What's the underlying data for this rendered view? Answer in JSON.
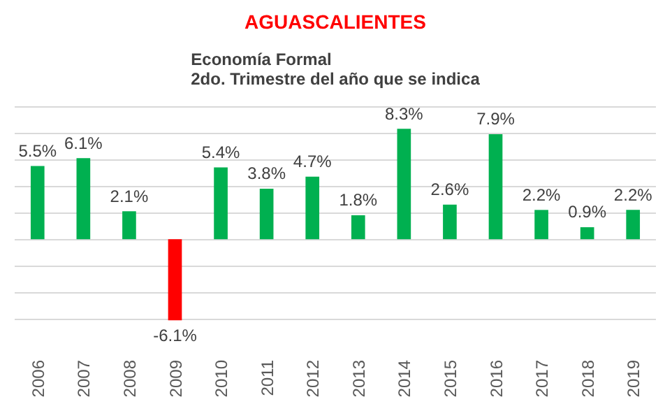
{
  "chart_data": {
    "type": "bar",
    "title": "AGUASCALIENTES",
    "subtitle": "Economía Formal\n2do. Trimestre del año que se indica",
    "categories": [
      "2006",
      "2007",
      "2008",
      "2009",
      "2010",
      "2011",
      "2012",
      "2013",
      "2014",
      "2015",
      "2016",
      "2017",
      "2018",
      "2019"
    ],
    "values": [
      5.5,
      6.1,
      2.1,
      -6.1,
      5.4,
      3.8,
      4.7,
      1.8,
      8.3,
      2.6,
      7.9,
      2.2,
      0.9,
      2.2
    ],
    "value_labels": [
      "5.5%",
      "6.1%",
      "2.1%",
      "-6.1%",
      "5.4%",
      "3.8%",
      "4.7%",
      "1.8%",
      "8.3%",
      "2.6%",
      "7.9%",
      "2.2%",
      "0.9%",
      "2.2%"
    ],
    "colors": [
      "#00b050",
      "#00b050",
      "#00b050",
      "#ff0000",
      "#00b050",
      "#00b050",
      "#00b050",
      "#00b050",
      "#00b050",
      "#00b050",
      "#00b050",
      "#00b050",
      "#00b050",
      "#00b050"
    ],
    "grid": "y",
    "tick_labels": "x"
  }
}
